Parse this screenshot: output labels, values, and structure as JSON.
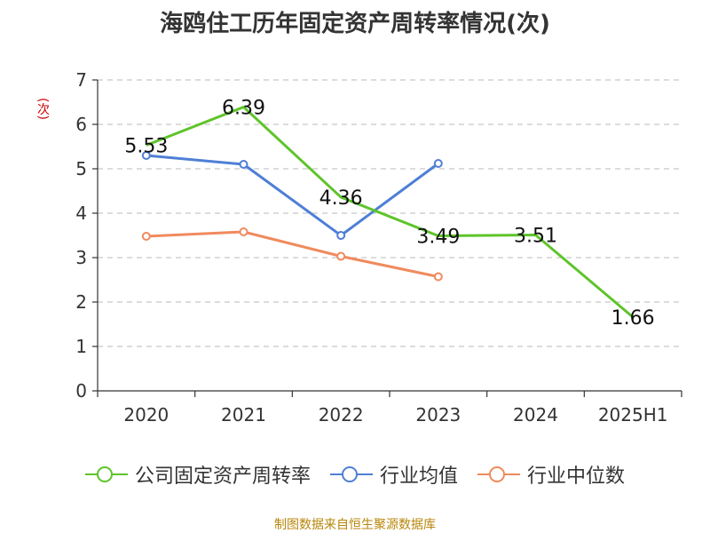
{
  "page": {
    "title": "海鸥住工历年固定资产周转率情况(次)",
    "unit_label": "(次)",
    "source": "制图数据来自恒生聚源数据库"
  },
  "chart_data": {
    "type": "line",
    "title": "海鸥住工历年固定资产周转率情况(次)",
    "ylabel": "(次)",
    "xlabel": "",
    "categories": [
      "2020",
      "2021",
      "2022",
      "2023",
      "2024",
      "2025H1"
    ],
    "ylim": [
      0,
      7
    ],
    "yticks": [
      0,
      1,
      2,
      3,
      4,
      5,
      6,
      7
    ],
    "grid": true,
    "legend_position": "bottom",
    "series": [
      {
        "name": "公司固定资产周转率",
        "color": "#5ec42a",
        "values": [
          5.53,
          6.39,
          4.36,
          3.49,
          3.51,
          1.66
        ],
        "labels": [
          "5.53",
          "6.39",
          "4.36",
          "3.49",
          "3.51",
          "1.66"
        ],
        "markers": false
      },
      {
        "name": "行业均值",
        "color": "#4f7fd6",
        "values": [
          5.3,
          5.1,
          3.5,
          5.12,
          null,
          null
        ],
        "markers": true
      },
      {
        "name": "行业中位数",
        "color": "#f08a5d",
        "values": [
          3.48,
          3.58,
          3.03,
          2.57,
          null,
          null
        ],
        "markers": true
      }
    ]
  }
}
